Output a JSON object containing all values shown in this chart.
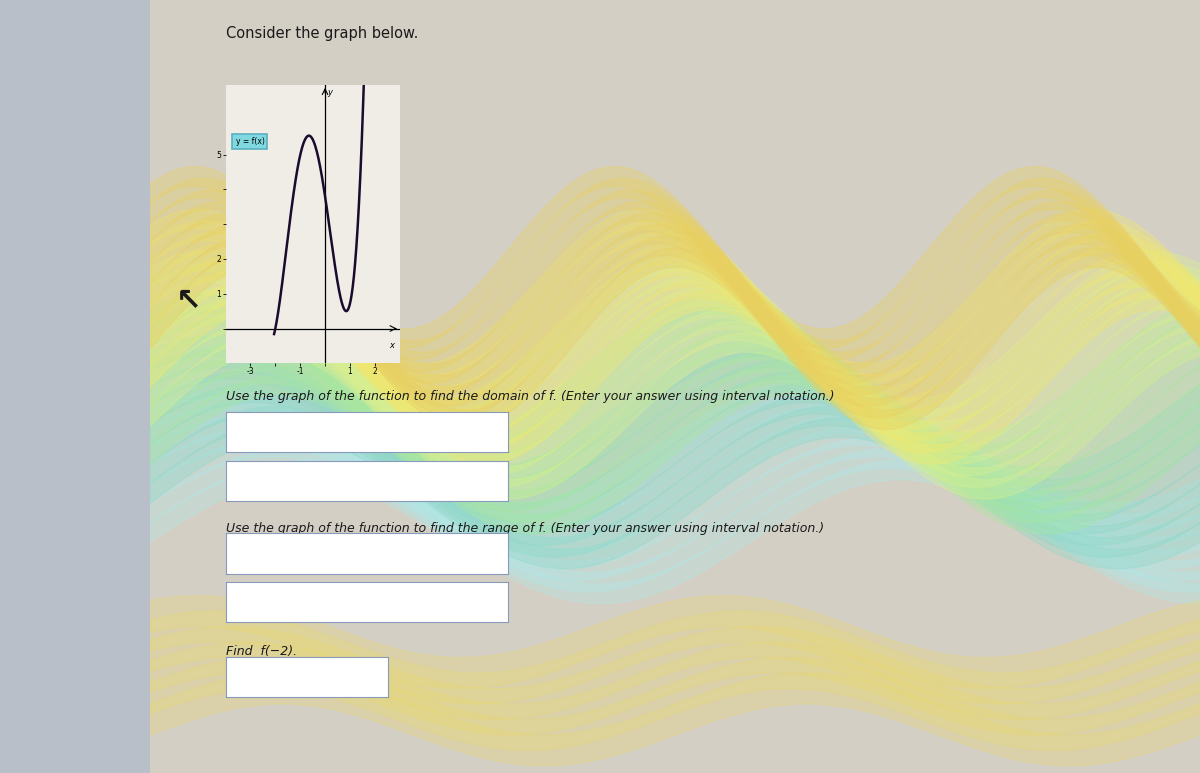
{
  "title": "Consider the graph below.",
  "graph_label": "y = f(x)",
  "bg_color": "#d4cfc8",
  "left_panel_color": "#b8bfc8",
  "content_bg": "#d4cfc4",
  "curve_color": "#1a0a2e",
  "label_box_color": "#80d8e0",
  "label_box_edge": "#5ab0c0",
  "text_color": "#1a1a1a",
  "domain_text": "Use the graph of the function to find the domain of f. (Enter your answer using interval notation.)",
  "range_text": "Use the graph of the function to find the range of f. (Enter your answer using interval notation.)",
  "find_text": "Find  f(−2).",
  "xlim": [
    -4,
    3
  ],
  "ylim": [
    -1,
    7
  ],
  "xlabel": "x",
  "ylabel": "y",
  "swirl_colors": [
    "#a0e8e8",
    "#c8f0a0",
    "#f0e870",
    "#e8d080"
  ],
  "box_edge_color": "#8899aa",
  "icon_color": "#4488aa"
}
